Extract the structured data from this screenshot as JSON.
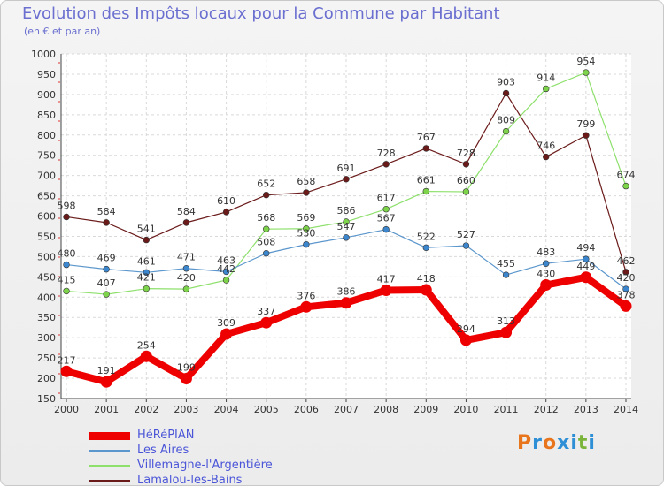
{
  "title": "Evolution des Impôts locaux pour la Commune par Habitant",
  "subtitle": "(en € et par an)",
  "logo": {
    "text": "Proxiti",
    "letters": [
      "P",
      "r",
      "o",
      "x",
      "i",
      "t",
      "i"
    ],
    "colors": [
      "#e8741b",
      "#2e8fd6",
      "#e8741b",
      "#2e8fd6",
      "#2e8fd6",
      "#7bb43a",
      "#2e8fd6"
    ]
  },
  "chart_data": {
    "type": "line",
    "title": "Evolution des Impôts locaux pour la Commune par Habitant",
    "subtitle": "(en € et par an)",
    "xlabel": "",
    "ylabel": "",
    "ylim": [
      150,
      1000
    ],
    "yticks": [
      150,
      200,
      250,
      300,
      350,
      400,
      450,
      500,
      550,
      600,
      650,
      700,
      750,
      800,
      850,
      900,
      950,
      1000
    ],
    "categories": [
      "2000",
      "2001",
      "2002",
      "2003",
      "2004",
      "2005",
      "2006",
      "2007",
      "2008",
      "2009",
      "2010",
      "2011",
      "2012",
      "2013",
      "2014"
    ],
    "series": [
      {
        "name": "Lamalou-les-Bains",
        "color": "#6b1a1a",
        "width": 1.2,
        "values": [
          598,
          584,
          541,
          584,
          610,
          652,
          658,
          691,
          728,
          767,
          728,
          903,
          746,
          799,
          462
        ]
      },
      {
        "name": "Villemagne-l'Argentière",
        "color": "#8ee06c",
        "width": 1.2,
        "marker": "#7dd34a",
        "values": [
          415,
          407,
          421,
          420,
          442,
          568,
          569,
          586,
          617,
          661,
          660,
          809,
          914,
          954,
          674
        ]
      },
      {
        "name": "Les Aires",
        "color": "#5b96cc",
        "width": 1.2,
        "marker": "#3b86cc",
        "values": [
          480,
          469,
          461,
          471,
          463,
          508,
          530,
          547,
          567,
          522,
          527,
          455,
          483,
          494,
          420
        ]
      },
      {
        "name": "HéRéPIAN",
        "color": "#ee0000",
        "width": 8,
        "values": [
          217,
          191,
          254,
          199,
          309,
          337,
          376,
          386,
          417,
          418,
          294,
          313,
          430,
          449,
          378
        ]
      }
    ],
    "legend": [
      {
        "name": "HéRéPIAN",
        "color": "#ee0000",
        "width": 9
      },
      {
        "name": "Les Aires",
        "color": "#5b96cc",
        "width": 2
      },
      {
        "name": "Villemagne-l'Argentière",
        "color": "#8ee06c",
        "width": 2
      },
      {
        "name": "Lamalou-les-Bains",
        "color": "#6b1a1a",
        "width": 2
      }
    ],
    "legend_position": "bottom-left",
    "grid": true
  }
}
